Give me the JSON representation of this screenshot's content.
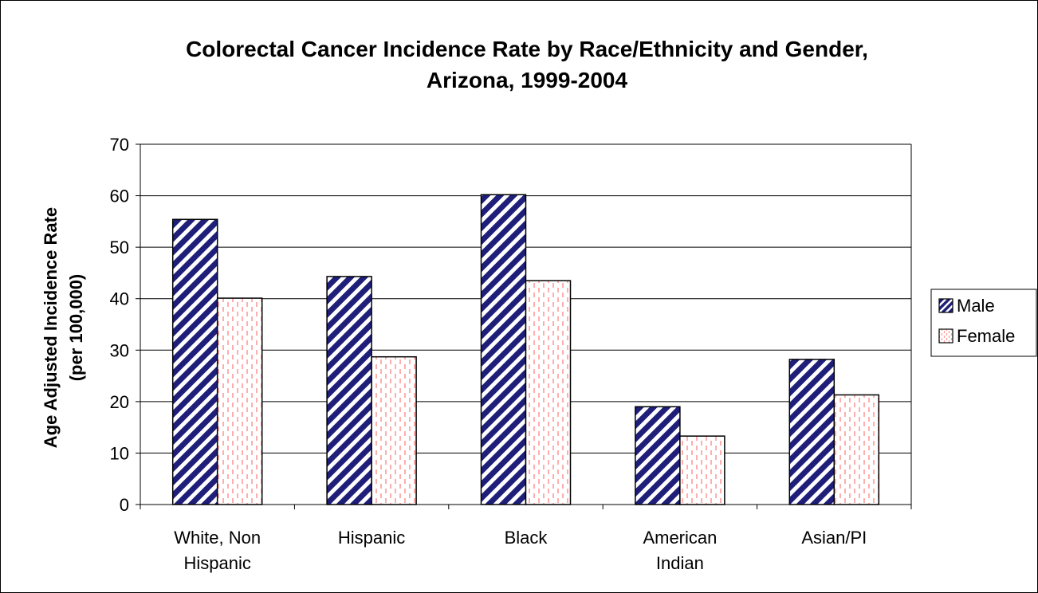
{
  "chart_data": {
    "type": "bar",
    "title_lines": [
      "Colorectal Cancer Incidence Rate by Race/Ethnicity and Gender,",
      "Arizona, 1999-2004"
    ],
    "ylabel_lines": [
      "Age Adjusted Incidence Rate",
      "(per 100,000)"
    ],
    "xlabel": "",
    "categories": [
      [
        "White, Non",
        "Hispanic"
      ],
      [
        "Hispanic"
      ],
      [
        "Black"
      ],
      [
        "American",
        "Indian"
      ],
      [
        "Asian/PI"
      ]
    ],
    "series": [
      {
        "name": "Male",
        "values": [
          55.4,
          44.3,
          60.2,
          19.0,
          28.2
        ],
        "color": "#1f1f7a",
        "pattern": "wide-diagonal-stripes"
      },
      {
        "name": "Female",
        "values": [
          40.1,
          28.7,
          43.5,
          13.3,
          21.3
        ],
        "color": "#ff9999",
        "pattern": "dashed-vertical"
      }
    ],
    "ylim": [
      0,
      70
    ],
    "yticks": [
      0,
      10,
      20,
      30,
      40,
      50,
      60,
      70
    ],
    "grid": true,
    "legend_position": "right"
  }
}
